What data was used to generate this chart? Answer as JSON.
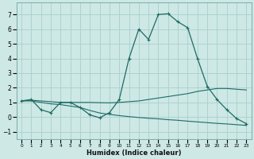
{
  "xlabel": "Humidex (Indice chaleur)",
  "bg_color": "#cde8e5",
  "grid_color": "#aacfcc",
  "line_color": "#1e6b65",
  "xlim": [
    -0.5,
    23.5
  ],
  "ylim": [
    -1.5,
    7.8
  ],
  "xticks": [
    0,
    1,
    2,
    3,
    4,
    5,
    6,
    7,
    8,
    9,
    10,
    11,
    12,
    13,
    14,
    15,
    16,
    17,
    18,
    19,
    20,
    21,
    22,
    23
  ],
  "yticks": [
    -1,
    0,
    1,
    2,
    3,
    4,
    5,
    6,
    7
  ],
  "series1_x": [
    0,
    1,
    2,
    3,
    4,
    5,
    6,
    7,
    8,
    9,
    10,
    11,
    12,
    13,
    14,
    15,
    16,
    17,
    18,
    19,
    20,
    21,
    22,
    23
  ],
  "series1_y": [
    1.1,
    1.2,
    0.5,
    0.3,
    1.0,
    1.0,
    0.65,
    0.15,
    -0.05,
    0.3,
    1.2,
    4.0,
    6.0,
    5.3,
    7.0,
    7.05,
    6.5,
    6.1,
    4.0,
    2.1,
    1.2,
    0.5,
    -0.1,
    -0.45
  ],
  "series2_x": [
    0,
    1,
    2,
    3,
    4,
    5,
    6,
    7,
    8,
    9,
    10,
    11,
    12,
    13,
    14,
    15,
    16,
    17,
    18,
    19,
    20,
    21,
    22,
    23
  ],
  "series2_y": [
    1.1,
    1.15,
    1.1,
    1.05,
    1.0,
    1.0,
    1.0,
    1.0,
    0.98,
    0.97,
    1.0,
    1.05,
    1.1,
    1.2,
    1.3,
    1.4,
    1.5,
    1.6,
    1.75,
    1.85,
    1.95,
    1.95,
    1.9,
    1.85
  ],
  "series3_x": [
    0,
    1,
    2,
    3,
    4,
    5,
    6,
    7,
    8,
    9,
    10,
    11,
    12,
    13,
    14,
    15,
    16,
    17,
    18,
    19,
    20,
    21,
    22,
    23
  ],
  "series3_y": [
    1.1,
    1.1,
    1.0,
    0.9,
    0.85,
    0.75,
    0.65,
    0.45,
    0.28,
    0.18,
    0.1,
    0.03,
    -0.03,
    -0.08,
    -0.12,
    -0.18,
    -0.22,
    -0.28,
    -0.33,
    -0.38,
    -0.43,
    -0.47,
    -0.52,
    -0.57
  ]
}
